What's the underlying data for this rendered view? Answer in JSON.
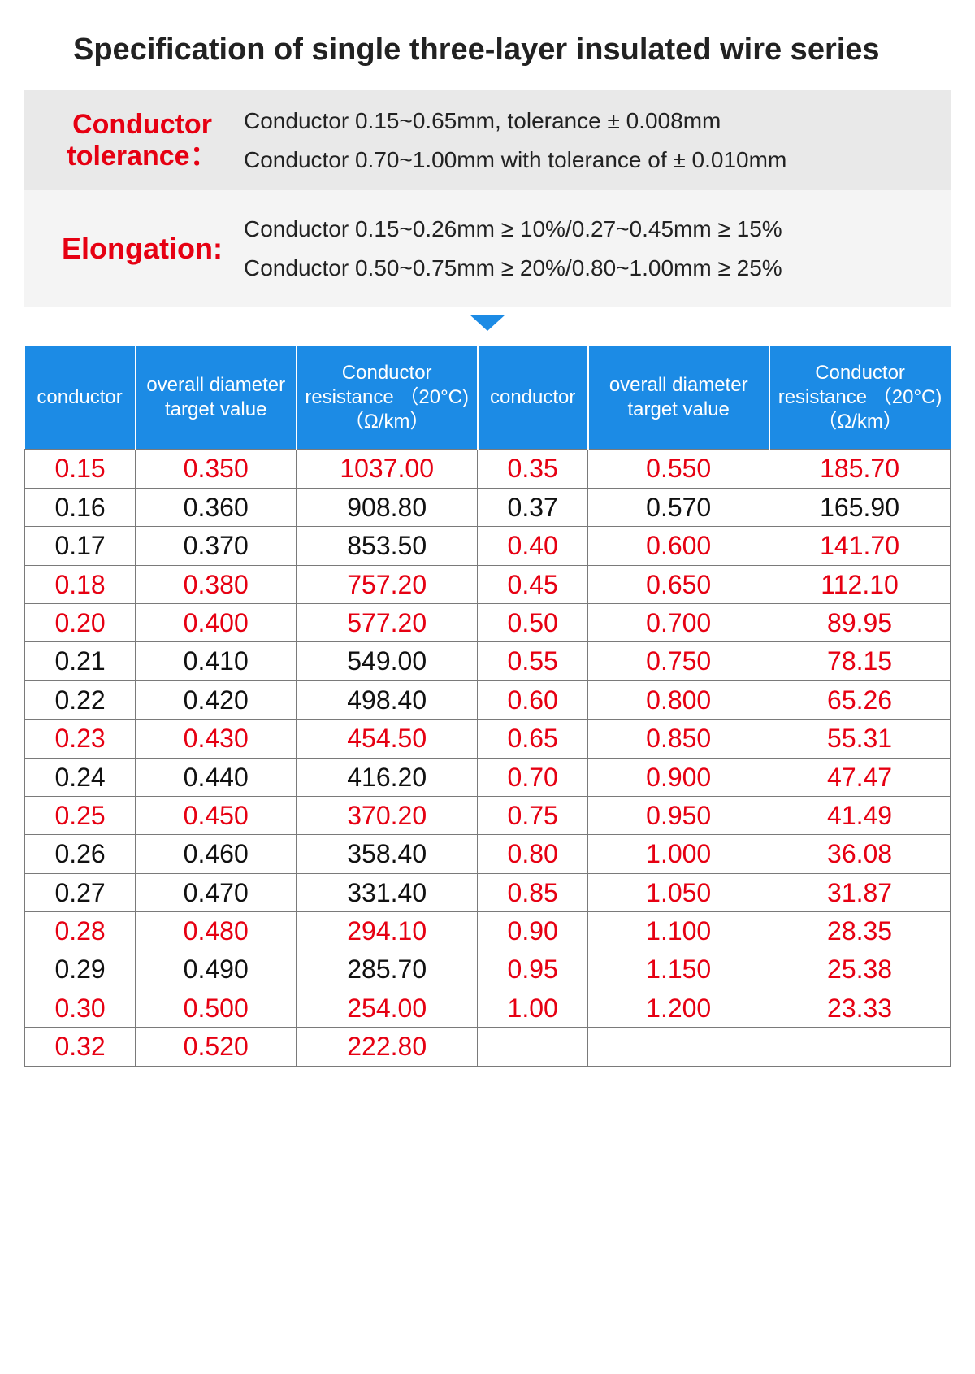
{
  "title": "Specification of single three-layer insulated wire series",
  "tolerance": {
    "label": "Conductor tolerance：",
    "line1": "Conductor 0.15~0.65mm, tolerance ± 0.008mm",
    "line2": "Conductor 0.70~1.00mm with tolerance of ± 0.010mm"
  },
  "elongation": {
    "label": "Elongation:",
    "line1": "Conductor 0.15~0.26mm ≥ 10%/0.27~0.45mm ≥ 15%",
    "line2": "Conductor 0.50~0.75mm ≥ 20%/0.80~1.00mm ≥ 25%"
  },
  "headers": {
    "conductor": "conductor",
    "overall": "overall diameter target value",
    "resistance": "Conductor resistance （20°C) （Ω/km）"
  },
  "rows": [
    {
      "l": {
        "c": "0.15",
        "d": "0.350",
        "r": "1037.00",
        "hl": true
      },
      "r": {
        "c": "0.35",
        "d": "0.550",
        "r": "185.70",
        "hl": true
      }
    },
    {
      "l": {
        "c": "0.16",
        "d": "0.360",
        "r": "908.80",
        "hl": false
      },
      "r": {
        "c": "0.37",
        "d": "0.570",
        "r": "165.90",
        "hl": false
      }
    },
    {
      "l": {
        "c": "0.17",
        "d": "0.370",
        "r": "853.50",
        "hl": false
      },
      "r": {
        "c": "0.40",
        "d": "0.600",
        "r": "141.70",
        "hl": true
      }
    },
    {
      "l": {
        "c": "0.18",
        "d": "0.380",
        "r": "757.20",
        "hl": true
      },
      "r": {
        "c": "0.45",
        "d": "0.650",
        "r": "112.10",
        "hl": true
      }
    },
    {
      "l": {
        "c": "0.20",
        "d": "0.400",
        "r": "577.20",
        "hl": true
      },
      "r": {
        "c": "0.50",
        "d": "0.700",
        "r": "89.95",
        "hl": true
      }
    },
    {
      "l": {
        "c": "0.21",
        "d": "0.410",
        "r": "549.00",
        "hl": false
      },
      "r": {
        "c": "0.55",
        "d": "0.750",
        "r": "78.15",
        "hl": true
      }
    },
    {
      "l": {
        "c": "0.22",
        "d": "0.420",
        "r": "498.40",
        "hl": false
      },
      "r": {
        "c": "0.60",
        "d": "0.800",
        "r": "65.26",
        "hl": true
      }
    },
    {
      "l": {
        "c": "0.23",
        "d": "0.430",
        "r": "454.50",
        "hl": true
      },
      "r": {
        "c": "0.65",
        "d": "0.850",
        "r": "55.31",
        "hl": true
      }
    },
    {
      "l": {
        "c": "0.24",
        "d": "0.440",
        "r": "416.20",
        "hl": false
      },
      "r": {
        "c": "0.70",
        "d": "0.900",
        "r": "47.47",
        "hl": true
      }
    },
    {
      "l": {
        "c": "0.25",
        "d": "0.450",
        "r": "370.20",
        "hl": true
      },
      "r": {
        "c": "0.75",
        "d": "0.950",
        "r": "41.49",
        "hl": true
      }
    },
    {
      "l": {
        "c": "0.26",
        "d": "0.460",
        "r": "358.40",
        "hl": false
      },
      "r": {
        "c": "0.80",
        "d": "1.000",
        "r": "36.08",
        "hl": true
      }
    },
    {
      "l": {
        "c": "0.27",
        "d": "0.470",
        "r": "331.40",
        "hl": false
      },
      "r": {
        "c": "0.85",
        "d": "1.050",
        "r": "31.87",
        "hl": true
      }
    },
    {
      "l": {
        "c": "0.28",
        "d": "0.480",
        "r": "294.10",
        "hl": true
      },
      "r": {
        "c": "0.90",
        "d": "1.100",
        "r": "28.35",
        "hl": true
      }
    },
    {
      "l": {
        "c": "0.29",
        "d": "0.490",
        "r": "285.70",
        "hl": false
      },
      "r": {
        "c": "0.95",
        "d": "1.150",
        "r": "25.38",
        "hl": true
      }
    },
    {
      "l": {
        "c": "0.30",
        "d": "0.500",
        "r": "254.00",
        "hl": true
      },
      "r": {
        "c": "1.00",
        "d": "1.200",
        "r": "23.33",
        "hl": true
      }
    },
    {
      "l": {
        "c": "0.32",
        "d": "0.520",
        "r": "222.80",
        "hl": true
      },
      "r": null
    }
  ],
  "colors": {
    "header_bg": "#1c8be5",
    "highlight": "#e60012",
    "normal": "#111111",
    "border": "#7a7a7a"
  }
}
